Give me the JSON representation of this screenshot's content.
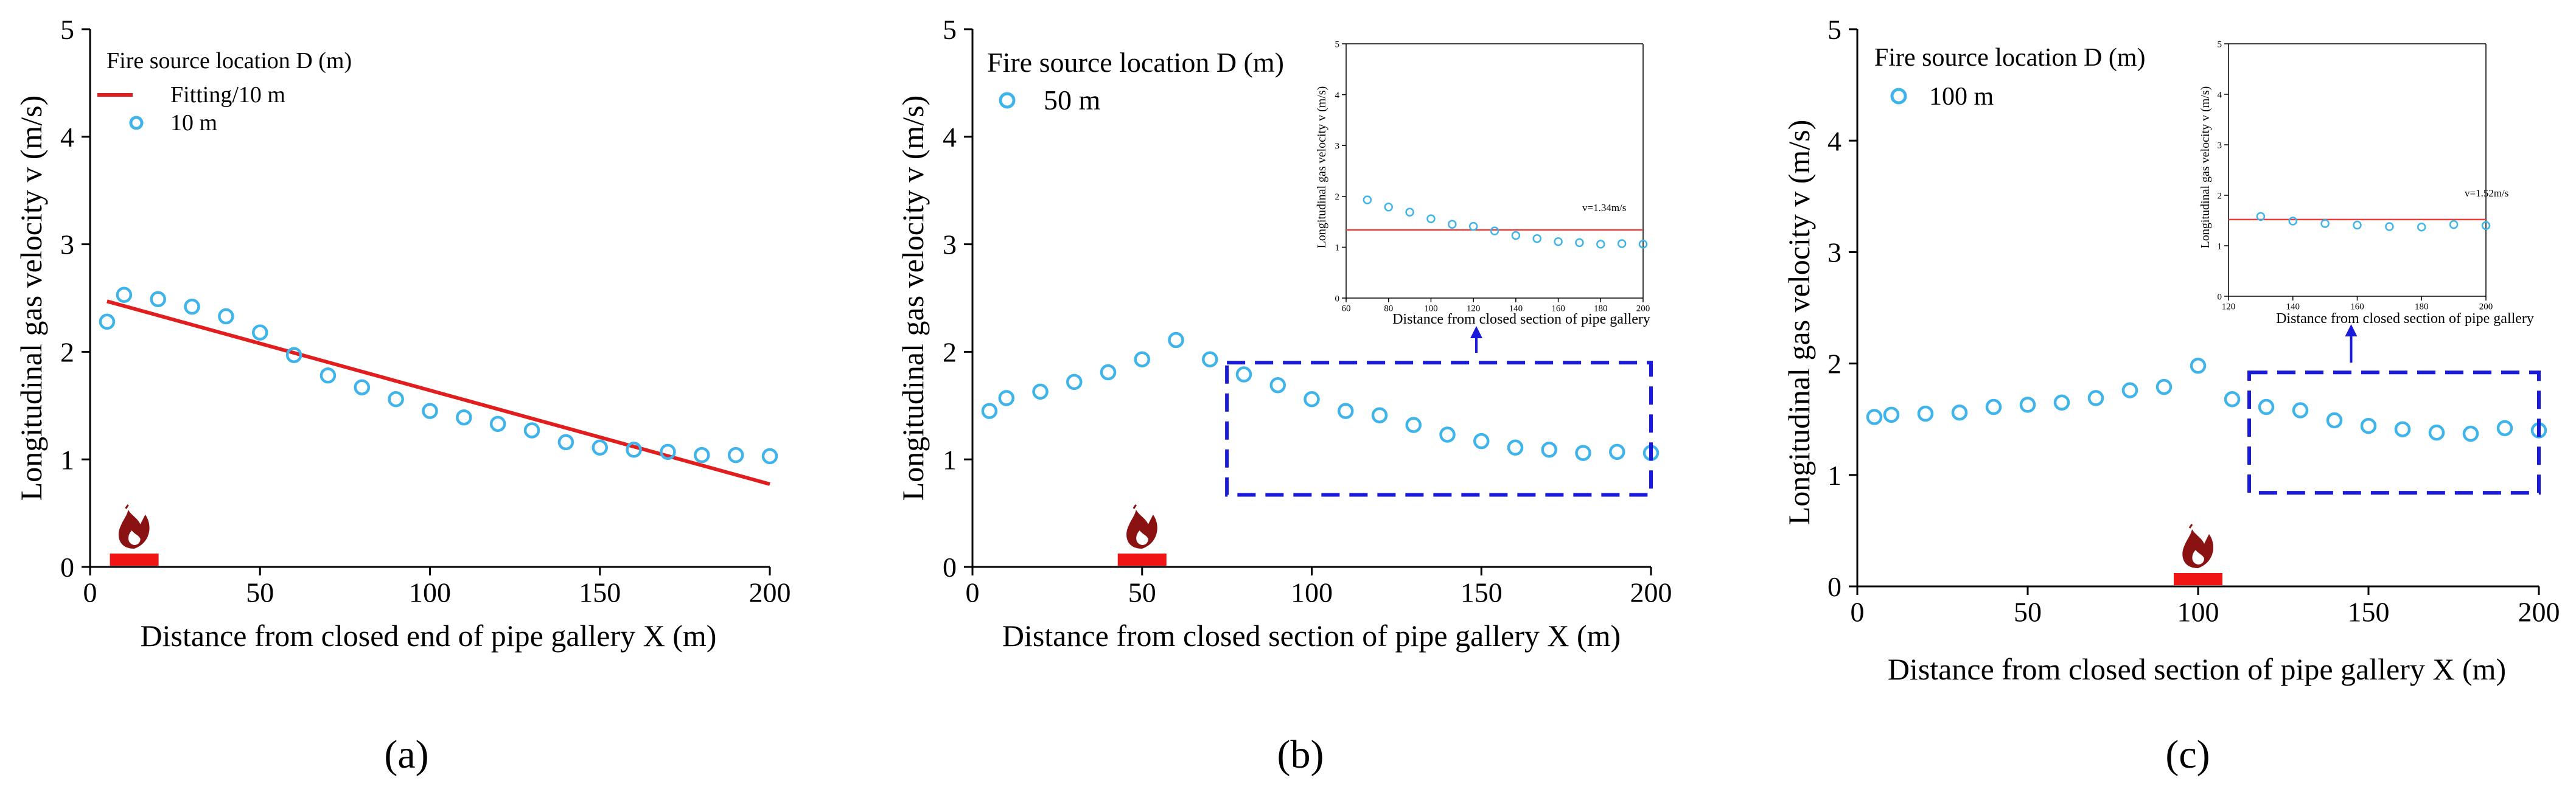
{
  "colors": {
    "marker": "#3fb4ea",
    "fit_line": "#e11d1d",
    "inset_line": "#e34040",
    "zoom_box": "#1a1adb",
    "fire_base": "#f01414",
    "flame": "#8b1212",
    "axis": "#000000"
  },
  "chart_data": [
    {
      "type": "scatter",
      "panel_label": "(a)",
      "legend_title": "Fire source location D (m)",
      "xlabel": "Distance from closed end of pipe gallery X (m)",
      "ylabel": "Longitudinal gas velocity v (m/s)",
      "xlim": [
        0,
        200
      ],
      "ylim": [
        0,
        5
      ],
      "xticks": [
        0,
        50,
        100,
        150,
        200
      ],
      "yticks": [
        0,
        1,
        2,
        3,
        4,
        5
      ],
      "fire_x": 13,
      "series": [
        {
          "name": "10 m",
          "kind": "markers",
          "x": [
            5,
            10,
            20,
            30,
            40,
            50,
            60,
            70,
            80,
            90,
            100,
            110,
            120,
            130,
            140,
            150,
            160,
            170,
            180,
            190,
            200
          ],
          "y": [
            2.28,
            2.53,
            2.49,
            2.42,
            2.33,
            2.18,
            1.97,
            1.78,
            1.67,
            1.56,
            1.45,
            1.39,
            1.33,
            1.27,
            1.16,
            1.11,
            1.09,
            1.07,
            1.04,
            1.04,
            1.03
          ]
        },
        {
          "name": "Fitting/10 m",
          "kind": "line",
          "x": [
            5,
            200
          ],
          "y": [
            2.47,
            0.77
          ]
        }
      ]
    },
    {
      "type": "scatter",
      "panel_label": "(b)",
      "legend_title": "Fire source location D (m)",
      "xlabel": "Distance from closed section of pipe gallery X (m)",
      "ylabel": "Longitudinal gas velocity v (m/s)",
      "xlim": [
        0,
        200
      ],
      "ylim": [
        0,
        5
      ],
      "xticks": [
        0,
        50,
        100,
        150,
        200
      ],
      "yticks": [
        0,
        1,
        2,
        3,
        4,
        5
      ],
      "fire_x": 50,
      "zoom_box": {
        "x": [
          75,
          200
        ],
        "y": [
          0.67,
          1.9
        ]
      },
      "series": [
        {
          "name": "50 m",
          "kind": "markers",
          "x": [
            5,
            10,
            20,
            30,
            40,
            50,
            60,
            70,
            80,
            90,
            100,
            110,
            120,
            130,
            140,
            150,
            160,
            170,
            180,
            190,
            200
          ],
          "y": [
            1.45,
            1.57,
            1.63,
            1.72,
            1.81,
            1.93,
            2.11,
            1.93,
            1.79,
            1.69,
            1.56,
            1.45,
            1.41,
            1.32,
            1.23,
            1.17,
            1.11,
            1.09,
            1.06,
            1.07,
            1.06
          ]
        }
      ],
      "inset": {
        "xlabel": "Distance from closed section of pipe gallery",
        "ylabel": "Longitudinal gas velocity v (m/s)",
        "xlim": [
          60,
          200
        ],
        "ylim": [
          0,
          5
        ],
        "xticks": [
          60,
          80,
          100,
          120,
          140,
          160,
          180,
          200
        ],
        "yticks": [
          0,
          1,
          2,
          3,
          4,
          5
        ],
        "hline": 1.34,
        "hline_label": "v=1.34m/s",
        "x": [
          70,
          80,
          90,
          100,
          110,
          120,
          130,
          140,
          150,
          160,
          170,
          180,
          190,
          200
        ],
        "y": [
          1.93,
          1.79,
          1.69,
          1.56,
          1.45,
          1.41,
          1.32,
          1.23,
          1.17,
          1.11,
          1.09,
          1.06,
          1.07,
          1.06
        ]
      }
    },
    {
      "type": "scatter",
      "panel_label": "(c)",
      "legend_title": "Fire source location D (m)",
      "xlabel": "Distance from closed section of pipe gallery X (m)",
      "ylabel": "Longitudinal gas velocity v (m/s)",
      "xlim": [
        0,
        200
      ],
      "ylim": [
        0,
        5
      ],
      "xticks": [
        0,
        50,
        100,
        150,
        200
      ],
      "yticks": [
        0,
        1,
        2,
        3,
        4,
        5
      ],
      "fire_x": 100,
      "zoom_box": {
        "x": [
          115,
          200
        ],
        "y": [
          0.84,
          1.92
        ]
      },
      "series": [
        {
          "name": "100 m",
          "kind": "markers",
          "x": [
            5,
            10,
            20,
            30,
            40,
            50,
            60,
            70,
            80,
            90,
            100,
            110,
            120,
            130,
            140,
            150,
            160,
            170,
            180,
            190,
            200
          ],
          "y": [
            1.52,
            1.54,
            1.55,
            1.56,
            1.61,
            1.63,
            1.65,
            1.69,
            1.76,
            1.79,
            1.98,
            1.68,
            1.61,
            1.58,
            1.49,
            1.44,
            1.41,
            1.38,
            1.37,
            1.42,
            1.4
          ]
        }
      ],
      "inset": {
        "xlabel": "Distance from closed section of pipe gallery",
        "ylabel": "Longitudinal gas velocity v (m/s)",
        "xlim": [
          120,
          200
        ],
        "ylim": [
          0,
          5
        ],
        "xticks": [
          120,
          140,
          160,
          180,
          200
        ],
        "yticks": [
          0,
          1,
          2,
          3,
          4,
          5
        ],
        "hline": 1.52,
        "hline_label": "v=1.52m/s",
        "x": [
          130,
          140,
          150,
          160,
          170,
          180,
          190,
          200
        ],
        "y": [
          1.58,
          1.49,
          1.44,
          1.41,
          1.38,
          1.37,
          1.42,
          1.4
        ]
      }
    }
  ]
}
